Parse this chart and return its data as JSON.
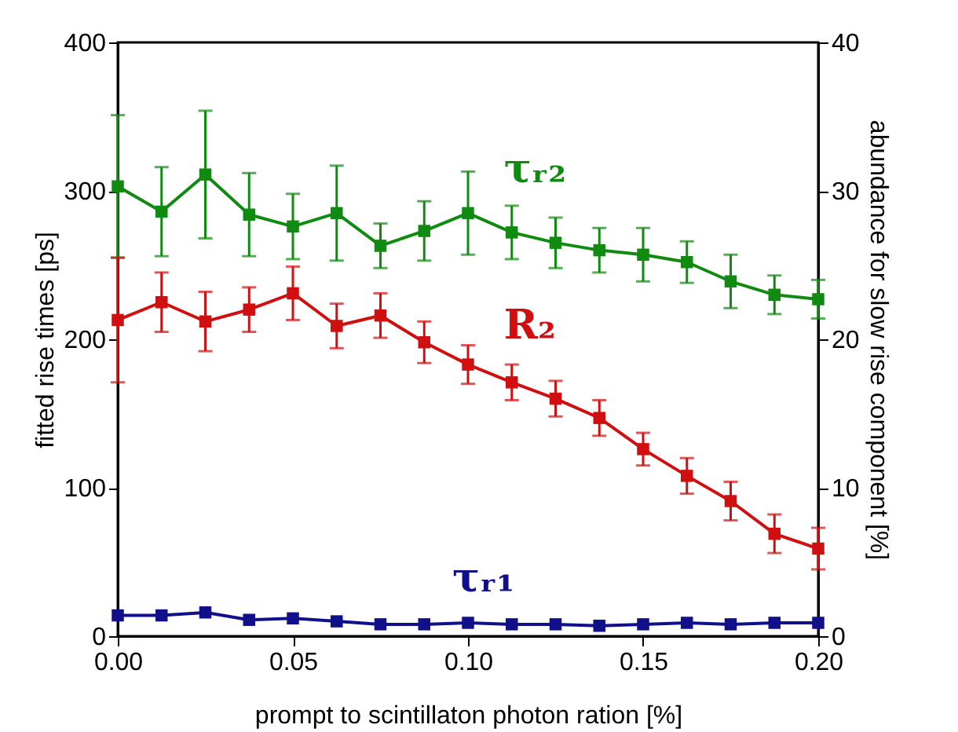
{
  "chart_data": {
    "type": "line",
    "xlabel": "prompt to scintillaton photon ration [%]",
    "ylabel": "fitted rise times [ps]",
    "y2label": "abundance for slow rise component [%]",
    "x": [
      0,
      0.0125,
      0.025,
      0.0375,
      0.05,
      0.0625,
      0.075,
      0.0875,
      0.1,
      0.1125,
      0.125,
      0.1375,
      0.15,
      0.1625,
      0.175,
      0.1875,
      0.2
    ],
    "series": [
      {
        "name": "τᵣ₂",
        "color": "#108a10",
        "values": [
          303,
          286,
          311,
          284,
          276,
          285,
          263,
          273,
          285,
          272,
          265,
          260,
          257,
          252,
          239,
          230,
          227
        ],
        "errors": [
          48,
          30,
          43,
          28,
          22,
          32,
          15,
          20,
          28,
          18,
          17,
          15,
          18,
          14,
          18,
          13,
          13
        ]
      },
      {
        "name": "R₂",
        "color": "#d01010",
        "axis": "y2",
        "values": [
          21.3,
          22.5,
          21.2,
          22.0,
          23.1,
          20.9,
          21.6,
          19.8,
          18.3,
          17.1,
          16.0,
          14.7,
          12.6,
          10.8,
          9.1,
          6.9,
          5.9
        ],
        "errors": [
          4.2,
          2.0,
          2.0,
          1.5,
          1.8,
          1.5,
          1.5,
          1.4,
          1.3,
          1.2,
          1.2,
          1.2,
          1.1,
          1.2,
          1.3,
          1.3,
          1.4
        ]
      },
      {
        "name": "τᵣ₁",
        "color": "#10108a",
        "values": [
          14,
          14,
          16,
          11,
          12,
          10,
          8,
          8,
          9,
          8,
          8,
          7,
          8,
          9,
          8,
          9,
          9
        ]
      }
    ],
    "xlim": [
      0,
      0.2
    ],
    "xticks": [
      {
        "value": 0,
        "label": "0.00"
      },
      {
        "value": 0.05,
        "label": "0.05"
      },
      {
        "value": 0.1,
        "label": "0.10"
      },
      {
        "value": 0.15,
        "label": "0.15"
      },
      {
        "value": 0.2,
        "label": "0.20"
      }
    ],
    "ylim": [
      0,
      400
    ],
    "yticks": [
      0,
      100,
      200,
      300,
      400
    ],
    "y2lim": [
      0,
      40
    ],
    "y2ticks": [
      0,
      10,
      20,
      30,
      40
    ],
    "grid": false,
    "marker": "square",
    "line_style": "solid"
  }
}
